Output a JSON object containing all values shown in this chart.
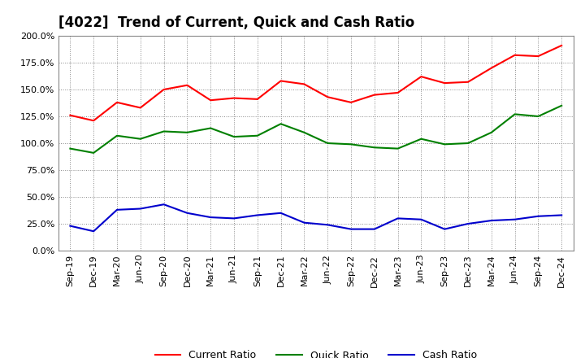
{
  "title": "[4022]  Trend of Current, Quick and Cash Ratio",
  "labels": [
    "Sep-19",
    "Dec-19",
    "Mar-20",
    "Jun-20",
    "Sep-20",
    "Dec-20",
    "Mar-21",
    "Jun-21",
    "Sep-21",
    "Dec-21",
    "Mar-22",
    "Jun-22",
    "Sep-22",
    "Dec-22",
    "Mar-23",
    "Jun-23",
    "Sep-23",
    "Dec-23",
    "Mar-24",
    "Jun-24",
    "Sep-24",
    "Dec-24"
  ],
  "current_ratio": [
    126,
    121,
    138,
    133,
    150,
    154,
    140,
    142,
    141,
    158,
    155,
    143,
    138,
    145,
    147,
    162,
    156,
    157,
    170,
    182,
    181,
    191
  ],
  "quick_ratio": [
    95,
    91,
    107,
    104,
    111,
    110,
    114,
    106,
    107,
    118,
    110,
    100,
    99,
    96,
    95,
    104,
    99,
    100,
    110,
    127,
    125,
    135
  ],
  "cash_ratio": [
    23,
    18,
    38,
    39,
    43,
    35,
    31,
    30,
    33,
    35,
    26,
    24,
    20,
    20,
    30,
    29,
    20,
    25,
    28,
    29,
    32,
    33
  ],
  "current_color": "#FF0000",
  "quick_color": "#008000",
  "cash_color": "#0000CD",
  "ylim": [
    0,
    200
  ],
  "yticks": [
    0,
    25,
    50,
    75,
    100,
    125,
    150,
    175,
    200
  ],
  "bg_color": "#FFFFFF",
  "grid_color": "#888888",
  "legend_labels": [
    "Current Ratio",
    "Quick Ratio",
    "Cash Ratio"
  ],
  "title_fontsize": 12,
  "tick_fontsize": 8,
  "legend_fontsize": 9
}
